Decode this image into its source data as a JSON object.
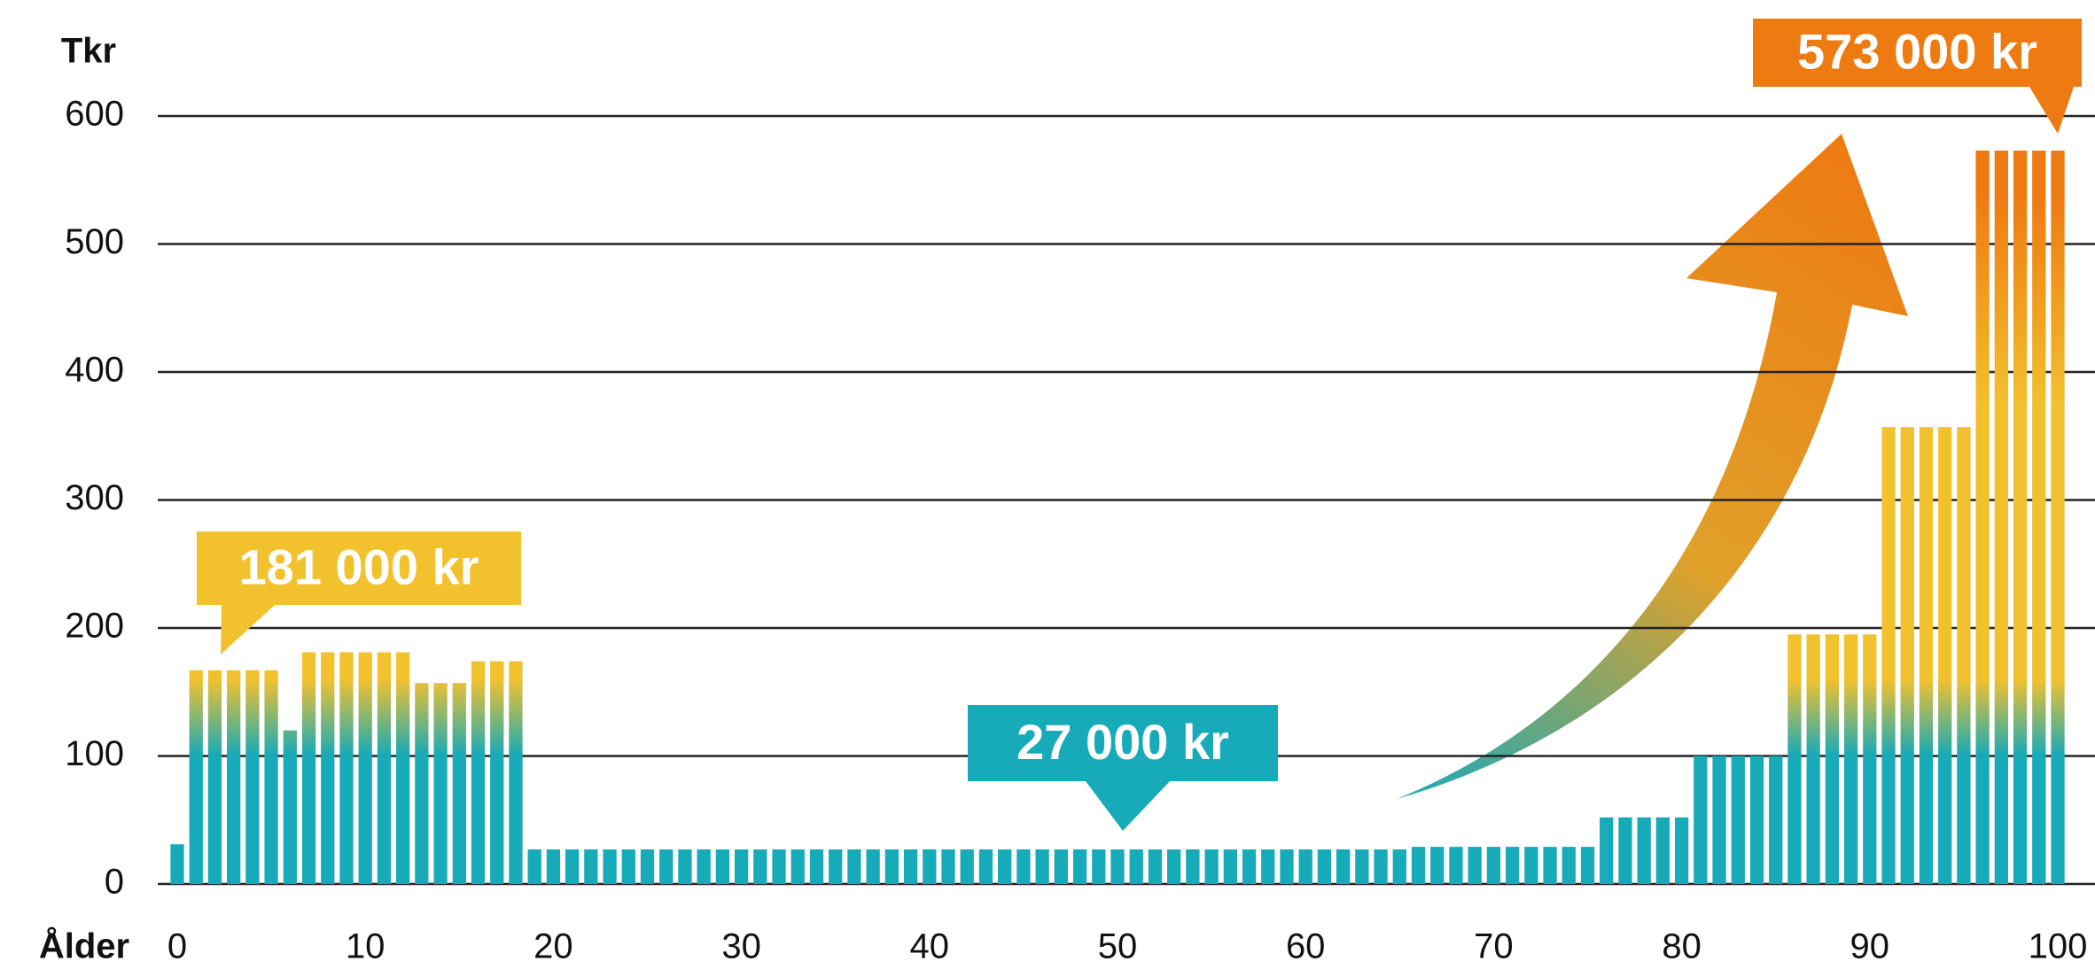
{
  "chart_data": {
    "type": "bar",
    "y_label": "Tkr",
    "x_label": "Ålder",
    "x": [
      0,
      1,
      2,
      3,
      4,
      5,
      6,
      7,
      8,
      9,
      10,
      11,
      12,
      13,
      14,
      15,
      16,
      17,
      18,
      19,
      20,
      21,
      22,
      23,
      24,
      25,
      26,
      27,
      28,
      29,
      30,
      31,
      32,
      33,
      34,
      35,
      36,
      37,
      38,
      39,
      40,
      41,
      42,
      43,
      44,
      45,
      46,
      47,
      48,
      49,
      50,
      51,
      52,
      53,
      54,
      55,
      56,
      57,
      58,
      59,
      60,
      61,
      62,
      63,
      64,
      65,
      66,
      67,
      68,
      69,
      70,
      71,
      72,
      73,
      74,
      75,
      76,
      77,
      78,
      79,
      80,
      81,
      82,
      83,
      84,
      85,
      86,
      87,
      88,
      89,
      90,
      91,
      92,
      93,
      94,
      95,
      96,
      97,
      98,
      99,
      100
    ],
    "values": [
      31,
      167,
      167,
      167,
      167,
      167,
      120,
      181,
      181,
      181,
      181,
      181,
      181,
      157,
      157,
      157,
      174,
      174,
      174,
      27,
      27,
      27,
      27,
      27,
      27,
      27,
      27,
      27,
      27,
      27,
      27,
      27,
      27,
      27,
      27,
      27,
      27,
      27,
      27,
      27,
      27,
      27,
      27,
      27,
      27,
      27,
      27,
      27,
      27,
      27,
      27,
      27,
      27,
      27,
      27,
      27,
      27,
      27,
      27,
      27,
      27,
      27,
      27,
      27,
      27,
      27,
      29,
      29,
      29,
      29,
      29,
      29,
      29,
      29,
      29,
      29,
      52,
      52,
      52,
      52,
      52,
      100,
      100,
      100,
      100,
      100,
      195,
      195,
      195,
      195,
      195,
      357,
      357,
      357,
      357,
      357,
      573,
      573,
      573,
      573,
      573
    ],
    "color": "#17aab8",
    "gradient_colors": [
      "#f2c12e",
      "#ee7a12"
    ],
    "gradient_start": 100,
    "xlim": [
      0,
      100
    ],
    "xticks": [
      0,
      10,
      20,
      30,
      40,
      50,
      60,
      70,
      80,
      90,
      100
    ],
    "ylim": [
      0,
      600
    ],
    "yticks": [
      0,
      100,
      200,
      300,
      400,
      500,
      600
    ],
    "grid": true,
    "annotations": [
      {
        "text": "181 000 kr",
        "color": "#f2c12e"
      },
      {
        "text": "27 000 kr",
        "color": "#17aab8"
      },
      {
        "text": "573 000 kr",
        "color": "#ee7a12"
      }
    ]
  }
}
